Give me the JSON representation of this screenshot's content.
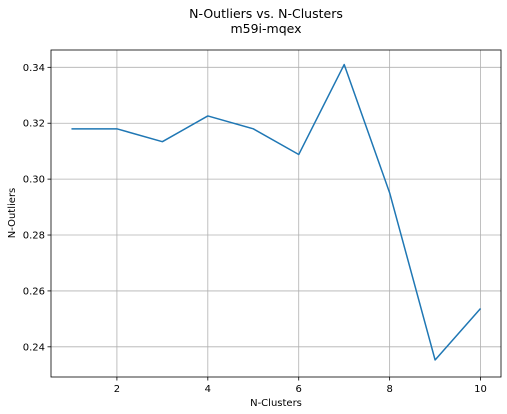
{
  "chart_data": {
    "type": "line",
    "title": "N-Outliers vs. N-Clusters",
    "subtitle": "m59i-mqex",
    "xlabel": "N-Clusters",
    "ylabel": "N-Outliers",
    "xlim": [
      0.55,
      10.45
    ],
    "ylim": [
      0.2292,
      0.3462
    ],
    "grid": true,
    "line_color": "#1f77b4",
    "x_ticks": [
      2,
      4,
      6,
      8,
      10
    ],
    "x_tick_labels": [
      "2",
      "4",
      "6",
      "8",
      "10"
    ],
    "y_ticks": [
      0.24,
      0.26,
      0.28,
      0.3,
      0.32,
      0.34
    ],
    "y_tick_labels": [
      "0.24",
      "0.26",
      "0.28",
      "0.30",
      "0.32",
      "0.34"
    ],
    "x": [
      1,
      2,
      3,
      4,
      5,
      6,
      7,
      8,
      9,
      10
    ],
    "series": [
      {
        "values": [
          0.318,
          0.318,
          0.3134,
          0.3226,
          0.318,
          0.3088,
          0.341,
          0.2951,
          0.2353,
          0.2537
        ]
      }
    ]
  }
}
